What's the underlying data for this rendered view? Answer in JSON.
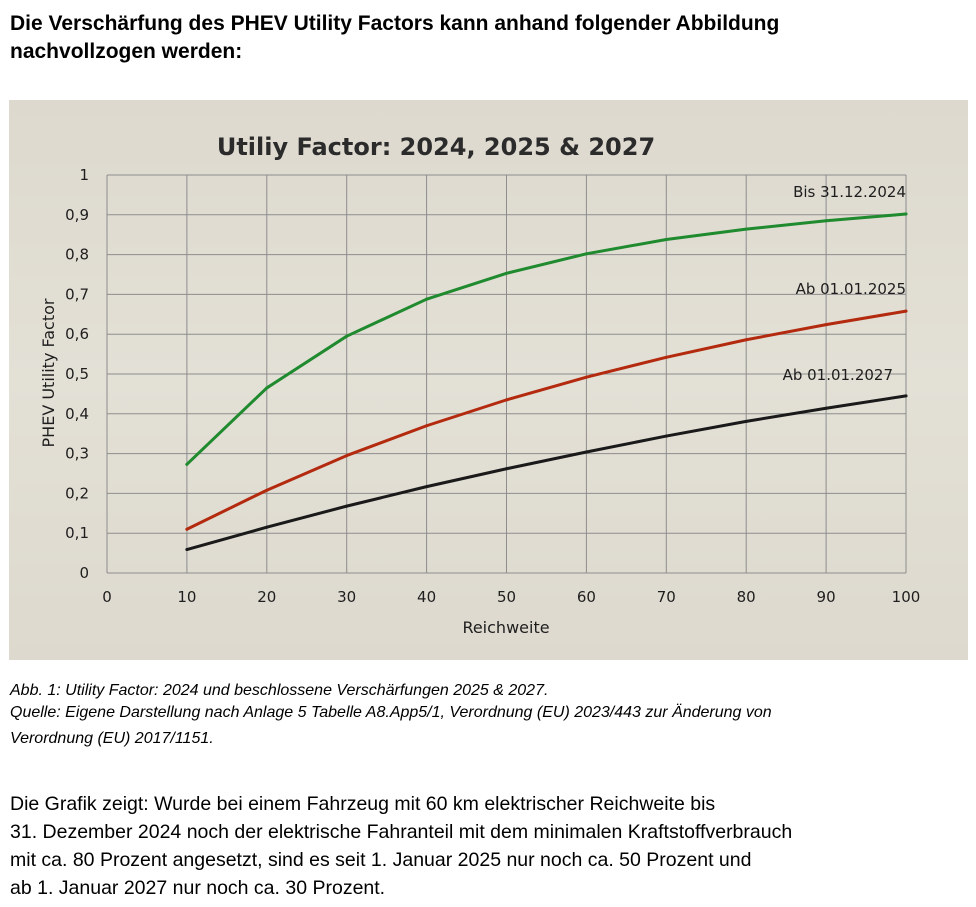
{
  "heading": {
    "line1": "Die Verschärfung des PHEV Utility Factors kann anhand folgender Abbildung",
    "line2": "nachvollzogen werden:"
  },
  "chart_data": {
    "type": "line",
    "title": "Utiliy Factor: 2024, 2025 & 2027",
    "xlabel": "Reichweite",
    "ylabel": "PHEV Utility Factor",
    "xlim": [
      0,
      100
    ],
    "ylim": [
      0,
      1
    ],
    "x_ticks": [
      "0",
      "10",
      "20",
      "30",
      "40",
      "50",
      "60",
      "70",
      "80",
      "90",
      "100"
    ],
    "y_ticks": [
      "0",
      "0,1",
      "0,2",
      "0,3",
      "0,4",
      "0,5",
      "0,6",
      "0,7",
      "0,8",
      "0,9",
      "1"
    ],
    "grid": true,
    "x": [
      10,
      20,
      30,
      40,
      50,
      60,
      70,
      80,
      90,
      100
    ],
    "series": [
      {
        "name": "Bis 31.12.2024",
        "color": "#1f8a2e",
        "values": [
          0.273,
          0.465,
          0.595,
          0.688,
          0.753,
          0.802,
          0.838,
          0.864,
          0.885,
          0.902
        ]
      },
      {
        "name": "Ab 01.01.2025",
        "color": "#b32a0e",
        "values": [
          0.11,
          0.208,
          0.295,
          0.37,
          0.435,
          0.492,
          0.542,
          0.586,
          0.624,
          0.658
        ]
      },
      {
        "name": "Ab 01.01.2027",
        "color": "#1a1a1a",
        "values": [
          0.059,
          0.115,
          0.168,
          0.217,
          0.262,
          0.304,
          0.344,
          0.381,
          0.414,
          0.445
        ]
      }
    ]
  },
  "caption": {
    "line1": "Abb. 1: Utility Factor: 2024 und beschlossene Verschärfungen 2025 & 2027.",
    "line2": "Quelle: Eigene Darstellung nach Anlage 5 Tabelle A8.App5/1, Verordnung (EU) 2023/443 zur Änderung von",
    "line3": "Verordnung (EU) 2017/1151."
  },
  "body": {
    "line1": "Die Grafik zeigt: Wurde bei einem Fahrzeug mit 60 km elektrischer Reichweite bis",
    "line2": "31. Dezember 2024 noch der elektrische Fahranteil mit dem minimalen Kraftstoffverbrauch",
    "line3": "mit ca. 80 Prozent angesetzt, sind es seit 1. Januar 2025 nur noch ca. 50 Prozent und",
    "line4": "ab 1. Januar 2027 nur noch ca. 30 Prozent."
  }
}
